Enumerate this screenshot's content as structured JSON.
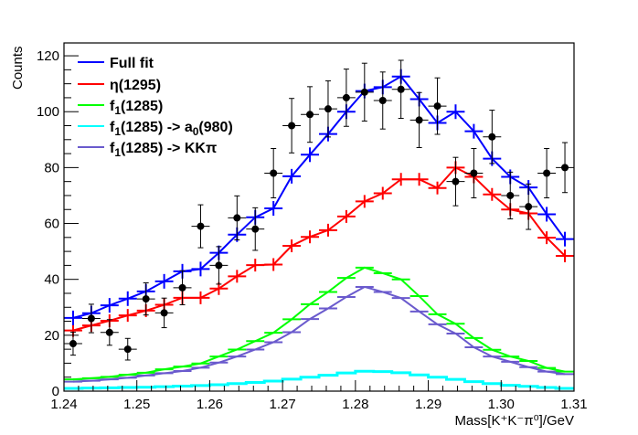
{
  "chart_data": {
    "type": "line",
    "title": "",
    "xlabel": "Mass[K⁺K⁻π⁰]/GeV",
    "ylabel": "Counts",
    "xlim": [
      1.24,
      1.31
    ],
    "ylim": [
      0,
      124.6
    ],
    "x_ticks": [
      "1.24",
      "1.25",
      "1.26",
      "1.27",
      "1.28",
      "1.29",
      "1.30",
      "1.31"
    ],
    "y_ticks": [
      "0",
      "20",
      "40",
      "60",
      "80",
      "100",
      "120"
    ],
    "grid": false,
    "legend_placement": "top-left",
    "bin_width": 0.0025,
    "x": [
      1.24125,
      1.24375,
      1.24625,
      1.24875,
      1.25125,
      1.25375,
      1.25625,
      1.25875,
      1.26125,
      1.26375,
      1.26625,
      1.26875,
      1.27125,
      1.27375,
      1.27625,
      1.27875,
      1.28125,
      1.28375,
      1.28625,
      1.28875,
      1.29125,
      1.29375,
      1.29625,
      1.29875,
      1.30125,
      1.30375,
      1.30625,
      1.30875
    ],
    "data_points": {
      "name": "Data",
      "color": "#000000",
      "values": [
        17,
        26,
        21,
        15,
        33,
        28,
        37,
        59,
        45,
        62,
        58,
        78,
        95,
        99,
        101,
        105,
        107,
        104,
        108,
        97,
        102,
        75,
        78,
        91,
        70,
        66,
        78,
        80
      ]
    },
    "series": [
      {
        "name": "Full fit",
        "color": "#0000ff",
        "marker": "cross",
        "values": [
          26.2,
          27.9,
          30.7,
          33.1,
          35.7,
          39.3,
          42.9,
          43.7,
          49.5,
          56,
          62.2,
          65.4,
          76.9,
          84.6,
          92,
          100,
          107.4,
          108.8,
          112.6,
          104.5,
          96,
          100,
          93,
          83.2,
          76.7,
          72.9,
          63.3,
          54.4
        ]
      },
      {
        "name": "η(1295)",
        "color": "#ff0000",
        "marker": "cross",
        "values": [
          21.7,
          23.5,
          25.2,
          27.1,
          28.8,
          30.9,
          33.4,
          33.4,
          36.7,
          41.1,
          45.1,
          45.3,
          52,
          55.2,
          57.6,
          62.5,
          67.9,
          70.8,
          75.8,
          75.8,
          72.7,
          80,
          76.7,
          70.4,
          65,
          63.6,
          54.9,
          48.4
        ]
      },
      {
        "name": "f1(1285)",
        "label_main": "f",
        "label_sub": "1",
        "label_rest": "(1285)",
        "color": "#00ff00",
        "marker": "bar",
        "values": [
          4.2,
          4.6,
          5.1,
          5.9,
          6.6,
          7.8,
          8.8,
          9.9,
          12.4,
          14.9,
          17.9,
          20.9,
          25.7,
          31.1,
          35.5,
          40.5,
          44.2,
          42.2,
          40,
          34,
          27.5,
          24.1,
          19,
          14.8,
          12.4,
          10.8,
          8.3,
          7
        ]
      },
      {
        "name": "f1(1285) -> a0(980)",
        "label_main": "f",
        "label_sub": "1",
        "label_rest": "(1285) -> a",
        "label_sub2": "0",
        "label_rest2": "(980)",
        "color": "#00ffff",
        "marker": "none",
        "values": [
          1.0,
          1.1,
          1.2,
          1.3,
          1.4,
          1.6,
          1.8,
          2.0,
          2.3,
          2.7,
          3.1,
          3.6,
          4.3,
          5.0,
          5.7,
          6.5,
          7.1,
          7.0,
          6.6,
          5.8,
          5.0,
          4.2,
          3.4,
          2.7,
          2.1,
          1.7,
          1.3,
          1.0
        ]
      },
      {
        "name": "f1(1285) -> KKπ",
        "label_main": "f",
        "label_sub": "1",
        "label_rest": "(1285) -> KKπ",
        "color": "#6a5acd",
        "marker": "bar",
        "values": [
          3.4,
          3.7,
          4.2,
          4.8,
          5.6,
          6.4,
          7.2,
          8.4,
          10.2,
          12.4,
          14.9,
          17.5,
          21.1,
          25.8,
          29.6,
          33.7,
          37.3,
          35.5,
          33.3,
          28.5,
          23.9,
          20.6,
          15.7,
          12.4,
          10.5,
          8.6,
          7,
          6.1
        ]
      }
    ]
  }
}
